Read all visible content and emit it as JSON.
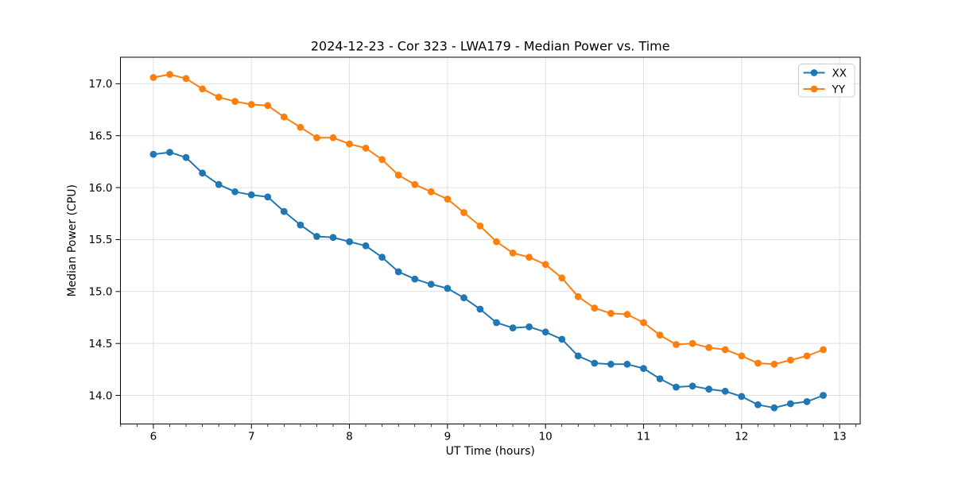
{
  "chart_data": {
    "type": "line",
    "title": "2024-12-23 - Cor 323 - LWA179 - Median Power vs. Time",
    "xlabel": "UT Time (hours)",
    "ylabel": "Median Power (CPU)",
    "xlim": [
      5.664,
      13.21
    ],
    "ylim": [
      13.725,
      17.255
    ],
    "x_major_ticks": [
      6,
      7,
      8,
      9,
      10,
      11,
      12,
      13
    ],
    "y_major_ticks": [
      14.0,
      14.5,
      15.0,
      15.5,
      16.0,
      16.5,
      17.0
    ],
    "x_minor_step": 0.166667,
    "grid": "major",
    "legend_position": "upper-right",
    "colors": {
      "grid": "#dfdfdf",
      "spine": "#000000",
      "background": "#ffffff",
      "legend_border": "#cccccc"
    },
    "x": [
      6.0,
      6.167,
      6.333,
      6.5,
      6.667,
      6.833,
      7.0,
      7.167,
      7.333,
      7.5,
      7.667,
      7.833,
      8.0,
      8.167,
      8.333,
      8.5,
      8.667,
      8.833,
      9.0,
      9.167,
      9.333,
      9.5,
      9.667,
      9.833,
      10.0,
      10.167,
      10.333,
      10.5,
      10.667,
      10.833,
      11.0,
      11.167,
      11.333,
      11.5,
      11.667,
      11.833,
      12.0,
      12.167,
      12.333,
      12.5,
      12.667,
      12.833
    ],
    "series": [
      {
        "name": "XX",
        "color": "#1f77b4",
        "marker": "circle",
        "values": [
          16.32,
          16.34,
          16.29,
          16.14,
          16.03,
          15.96,
          15.93,
          15.91,
          15.77,
          15.64,
          15.53,
          15.52,
          15.48,
          15.44,
          15.33,
          15.19,
          15.12,
          15.07,
          15.03,
          14.94,
          14.83,
          14.7,
          14.65,
          14.66,
          14.61,
          14.54,
          14.38,
          14.31,
          14.3,
          14.3,
          14.26,
          14.16,
          14.08,
          14.09,
          14.06,
          14.04,
          13.99,
          13.91,
          13.88,
          13.92,
          13.94,
          14.0
        ]
      },
      {
        "name": "YY",
        "color": "#ff7f0e",
        "marker": "circle",
        "values": [
          17.06,
          17.09,
          17.05,
          16.95,
          16.87,
          16.83,
          16.8,
          16.79,
          16.68,
          16.58,
          16.48,
          16.48,
          16.42,
          16.38,
          16.27,
          16.12,
          16.03,
          15.96,
          15.89,
          15.76,
          15.63,
          15.48,
          15.37,
          15.33,
          15.26,
          15.13,
          14.95,
          14.84,
          14.79,
          14.78,
          14.7,
          14.58,
          14.49,
          14.5,
          14.46,
          14.44,
          14.38,
          14.31,
          14.3,
          14.34,
          14.38,
          14.44
        ]
      }
    ]
  }
}
